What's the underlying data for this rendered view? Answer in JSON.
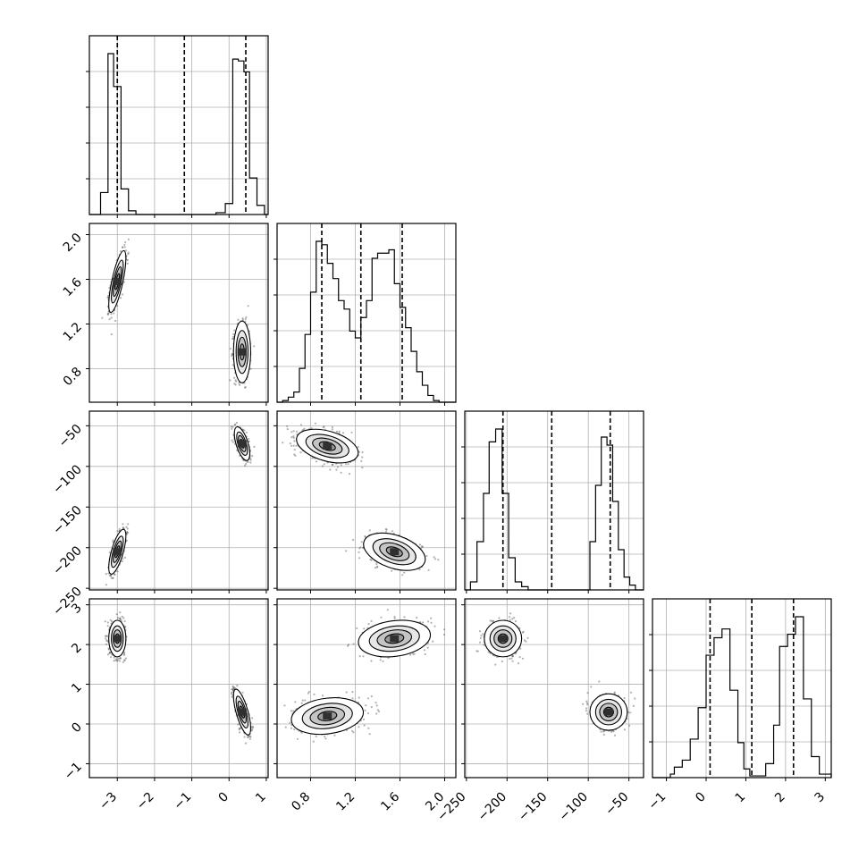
{
  "figure": {
    "type": "corner-plot",
    "n_params": 4,
    "colors": {
      "line": "#000000",
      "grid": "#b0b0b0",
      "points": "#555555",
      "background": "#ffffff"
    }
  },
  "chart_data": {
    "type": "corner",
    "grid": true,
    "params": [
      {
        "range": [
          -3.75,
          1.05
        ],
        "ticks": [
          -3,
          -2,
          -1,
          0,
          1
        ],
        "tick_labels": [
          "−3",
          "−2",
          "−1",
          "0",
          "1"
        ],
        "quantiles": [
          -3.0,
          -1.2,
          0.45
        ]
      },
      {
        "range": [
          0.5,
          2.1
        ],
        "ticks": [
          0.8,
          1.2,
          1.6,
          2.0
        ],
        "tick_labels": [
          "0.8",
          "1.2",
          "1.6",
          "2.0"
        ],
        "quantiles": [
          0.9,
          1.25,
          1.62
        ]
      },
      {
        "range": [
          -252,
          -32
        ],
        "ticks": [
          -250,
          -200,
          -150,
          -100,
          -50
        ],
        "tick_labels": [
          "−250",
          "−200",
          "−150",
          "−100",
          "−50"
        ],
        "quantiles": [
          -205,
          -145,
          -73
        ]
      },
      {
        "range": [
          -1.35,
          3.15
        ],
        "ticks": [
          -1,
          0,
          1,
          2,
          3
        ],
        "tick_labels": [
          "−1",
          "0",
          "1",
          "2",
          "3"
        ],
        "quantiles": [
          0.1,
          1.15,
          2.2
        ]
      }
    ],
    "histograms": [
      {
        "param": 0,
        "bin_edges": [
          -3.75,
          -3.45,
          -3.25,
          -3.1,
          -2.9,
          -2.7,
          -2.5,
          -2.3,
          -0.35,
          -0.1,
          0.1,
          0.25,
          0.4,
          0.55,
          0.75,
          0.95,
          1.05
        ],
        "counts": [
          0,
          0.12,
          0.88,
          0.7,
          0.14,
          0.02,
          0,
          0,
          0.01,
          0.06,
          0.85,
          0.84,
          0.78,
          0.2,
          0.05,
          0
        ]
      },
      {
        "param": 1,
        "bin_edges": [
          0.5,
          0.55,
          0.6,
          0.65,
          0.7,
          0.75,
          0.8,
          0.85,
          0.9,
          0.95,
          1.0,
          1.05,
          1.1,
          1.15,
          1.2,
          1.25,
          1.3,
          1.35,
          1.4,
          1.45,
          1.5,
          1.55,
          1.6,
          1.65,
          1.7,
          1.75,
          1.8,
          1.85,
          1.9,
          1.95,
          2.0,
          2.05,
          2.1
        ],
        "counts": [
          0,
          0.01,
          0.03,
          0.06,
          0.2,
          0.4,
          0.65,
          0.95,
          0.93,
          0.82,
          0.73,
          0.6,
          0.55,
          0.42,
          0.38,
          0.5,
          0.6,
          0.85,
          0.88,
          0.88,
          0.9,
          0.7,
          0.56,
          0.44,
          0.3,
          0.18,
          0.1,
          0.04,
          0.01,
          0,
          0,
          0
        ]
      },
      {
        "param": 2,
        "bin_edges": [
          -252,
          -245,
          -237,
          -229,
          -222,
          -214,
          -206,
          -198,
          -190,
          -182,
          -174,
          -166,
          -158,
          -98,
          -91,
          -84,
          -77,
          -70,
          -63,
          -56,
          -49,
          -42,
          -32
        ],
        "counts": [
          0,
          0.05,
          0.3,
          0.6,
          0.92,
          1.0,
          0.6,
          0.2,
          0.05,
          0.02,
          0,
          0,
          0,
          0.3,
          0.65,
          0.95,
          0.9,
          0.55,
          0.25,
          0.08,
          0.03,
          0
        ]
      },
      {
        "param": 3,
        "bin_edges": [
          -1.35,
          -0.9,
          -0.8,
          -0.6,
          -0.4,
          -0.2,
          0,
          0.2,
          0.4,
          0.6,
          0.8,
          0.95,
          1.1,
          1.3,
          1.5,
          1.7,
          1.85,
          2.05,
          2.25,
          2.45,
          2.65,
          2.85,
          3.15
        ],
        "counts": [
          0,
          0.02,
          0.06,
          0.1,
          0.22,
          0.4,
          0.7,
          0.8,
          0.85,
          0.5,
          0.2,
          0.05,
          0.01,
          0.01,
          0.08,
          0.3,
          0.75,
          0.82,
          0.92,
          0.45,
          0.12,
          0.02
        ]
      }
    ],
    "pairs": [
      {
        "row": 1,
        "col": 0,
        "modes": [
          {
            "mean": [
              -3.0,
              1.58
            ],
            "sd": [
              0.1,
              0.12
            ],
            "corr": 0.75
          },
          {
            "mean": [
              0.35,
              0.95
            ],
            "sd": [
              0.1,
              0.12
            ],
            "corr": 0.0
          }
        ]
      },
      {
        "row": 2,
        "col": 0,
        "modes": [
          {
            "mean": [
              -3.0,
              -205
            ],
            "sd": [
              0.1,
              12
            ],
            "corr": 0.7
          },
          {
            "mean": [
              0.35,
              -72
            ],
            "sd": [
              0.09,
              9
            ],
            "corr": -0.6
          }
        ]
      },
      {
        "row": 2,
        "col": 1,
        "modes": [
          {
            "mean": [
              0.95,
              -75
            ],
            "sd": [
              0.12,
              9
            ],
            "corr": -0.4
          },
          {
            "mean": [
              1.55,
              -205
            ],
            "sd": [
              0.12,
              10
            ],
            "corr": -0.4
          }
        ]
      },
      {
        "row": 3,
        "col": 0,
        "modes": [
          {
            "mean": [
              -3.0,
              2.15
            ],
            "sd": [
              0.1,
              0.2
            ],
            "corr": 0.0
          },
          {
            "mean": [
              0.35,
              0.3
            ],
            "sd": [
              0.1,
              0.25
            ],
            "corr": -0.7
          }
        ]
      },
      {
        "row": 3,
        "col": 1,
        "modes": [
          {
            "mean": [
              1.55,
              2.15
            ],
            "sd": [
              0.14,
              0.2
            ],
            "corr": 0.2
          },
          {
            "mean": [
              0.95,
              0.2
            ],
            "sd": [
              0.14,
              0.2
            ],
            "corr": 0.2
          }
        ]
      },
      {
        "row": 3,
        "col": 2,
        "modes": [
          {
            "mean": [
              -205,
              2.15
            ],
            "sd": [
              10,
              0.2
            ],
            "corr": 0.0
          },
          {
            "mean": [
              -75,
              0.3
            ],
            "sd": [
              10,
              0.2
            ],
            "corr": 0.0
          }
        ]
      }
    ]
  }
}
